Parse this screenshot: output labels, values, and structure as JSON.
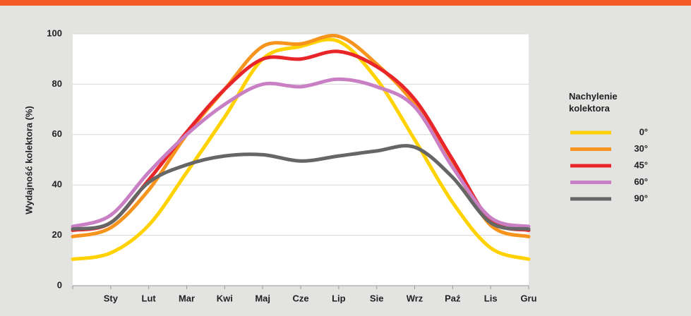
{
  "chart_data": {
    "type": "line",
    "y_label": "Wydajność kolektora (%)",
    "legend_title": "Nachylenie kolektora",
    "categories": [
      null,
      "Sty",
      "Lut",
      "Mar",
      "Kwi",
      "Maj",
      "Cze",
      "Lip",
      "Sie",
      "Wrz",
      "Paź",
      "Lis",
      "Gru"
    ],
    "series": [
      {
        "name": "0°",
        "color": "#ffd200",
        "values": [
          10.5,
          13,
          24,
          45,
          67,
          90,
          95,
          97,
          82,
          58,
          33,
          15,
          10.5
        ]
      },
      {
        "name": "30°",
        "color": "#f7941d",
        "values": [
          19.5,
          23,
          38,
          60,
          78,
          95,
          96,
          99,
          88,
          72,
          48,
          24,
          19.5
        ]
      },
      {
        "name": "45°",
        "color": "#e8262a",
        "values": [
          22,
          25,
          42,
          61,
          78,
          90,
          90,
          93,
          87,
          74,
          50,
          26,
          22
        ]
      },
      {
        "name": "60°",
        "color": "#c97fc4",
        "values": [
          23.5,
          28,
          45,
          60,
          72,
          80,
          79,
          82,
          79,
          71,
          47,
          27,
          23.5
        ]
      },
      {
        "name": "90°",
        "color": "#666666",
        "values": [
          22.5,
          25,
          41,
          48,
          51.5,
          52,
          49.5,
          51.5,
          53.5,
          55,
          43,
          25,
          22.5
        ]
      }
    ],
    "ylim": [
      0,
      100
    ],
    "yticks": [
      0,
      20,
      40,
      60,
      80,
      100
    ],
    "grid": true
  }
}
